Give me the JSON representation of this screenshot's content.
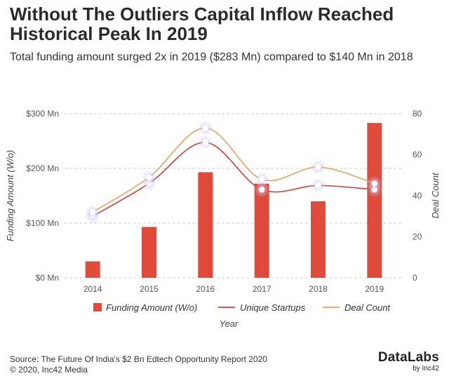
{
  "header": {
    "title": "Without The Outliers Capital Inflow Reached Historical Peak In 2019",
    "subtitle": "Total funding amount surged 2x in 2019 ($283 Mn) compared to $140 Mn in 2018"
  },
  "footer": {
    "source": "Source: The Future Of India's $2 Bn Edtech Opportunity Report 2020",
    "copyright": "© 2020, Inc42 Media"
  },
  "brand": {
    "name": "DataLabs",
    "by": "by Inc42"
  },
  "colors": {
    "bar": "#e04a3a",
    "startups_line": "#d93a34",
    "deals_line": "#eea05a",
    "grid": "#cccccc",
    "axis_text": "#555555"
  },
  "chart_data": {
    "type": "bar",
    "categories": [
      "2014",
      "2015",
      "2016",
      "2017",
      "2018",
      "2019"
    ],
    "series": [
      {
        "name": "Funding Amount (W/o)",
        "type": "bar",
        "axis": "left",
        "values": [
          30,
          93,
          193,
          172,
          140,
          283
        ]
      },
      {
        "name": "Unique Startups",
        "type": "line",
        "axis": "right",
        "values": [
          30,
          46,
          66,
          43,
          45,
          43
        ]
      },
      {
        "name": "Deal Count",
        "type": "line",
        "axis": "right",
        "values": [
          32,
          49,
          73,
          48,
          54,
          46
        ]
      }
    ],
    "xlabel": "Year",
    "ylabel_left": "Funding Amount (W/o)",
    "ylabel_right": "Deal Count",
    "ylim_left": [
      0,
      300
    ],
    "ylim_right": [
      0,
      80
    ],
    "yticks_left": [
      "$0 Mn",
      "$100 Mn",
      "$200 Mn",
      "$300 Mn"
    ],
    "yticks_right": [
      "0",
      "20",
      "40",
      "60",
      "80"
    ],
    "legend_position": "bottom"
  }
}
